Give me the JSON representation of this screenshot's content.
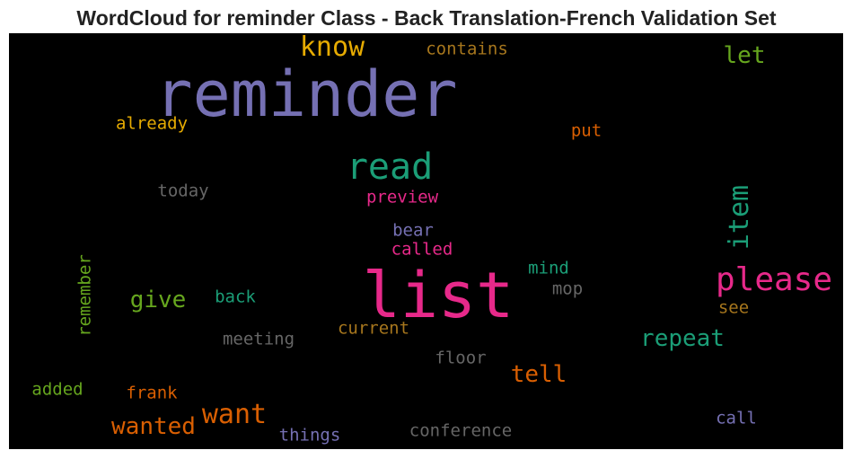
{
  "title": "WordCloud for reminder Class - Back Translation-French Validation Set",
  "cloud": {
    "background": "#000000",
    "words": [
      {
        "text": "reminder",
        "color": "#7570b3"
      },
      {
        "text": "list",
        "color": "#e7298a"
      },
      {
        "text": "read",
        "color": "#1b9e77"
      },
      {
        "text": "please",
        "color": "#e7298a"
      },
      {
        "text": "item",
        "color": "#1b9e77"
      },
      {
        "text": "know",
        "color": "#e6ab02"
      },
      {
        "text": "want",
        "color": "#d95f02"
      },
      {
        "text": "wanted",
        "color": "#d95f02"
      },
      {
        "text": "give",
        "color": "#66a61e"
      },
      {
        "text": "let",
        "color": "#66a61e"
      },
      {
        "text": "repeat",
        "color": "#1b9e77"
      },
      {
        "text": "tell",
        "color": "#d95f02"
      },
      {
        "text": "contains",
        "color": "#a6761d"
      },
      {
        "text": "already",
        "color": "#e6ab02"
      },
      {
        "text": "put",
        "color": "#d95f02"
      },
      {
        "text": "today",
        "color": "#666666"
      },
      {
        "text": "preview",
        "color": "#e7298a"
      },
      {
        "text": "bear",
        "color": "#7570b3"
      },
      {
        "text": "called",
        "color": "#e7298a"
      },
      {
        "text": "mind",
        "color": "#1b9e77"
      },
      {
        "text": "mop",
        "color": "#666666"
      },
      {
        "text": "back",
        "color": "#1b9e77"
      },
      {
        "text": "remember",
        "color": "#66a61e"
      },
      {
        "text": "current",
        "color": "#a6761d"
      },
      {
        "text": "see",
        "color": "#a6761d"
      },
      {
        "text": "meeting",
        "color": "#666666"
      },
      {
        "text": "floor",
        "color": "#666666"
      },
      {
        "text": "added",
        "color": "#66a61e"
      },
      {
        "text": "frank",
        "color": "#d95f02"
      },
      {
        "text": "call",
        "color": "#7570b3"
      },
      {
        "text": "things",
        "color": "#7570b3"
      },
      {
        "text": "conference",
        "color": "#666666"
      }
    ]
  }
}
